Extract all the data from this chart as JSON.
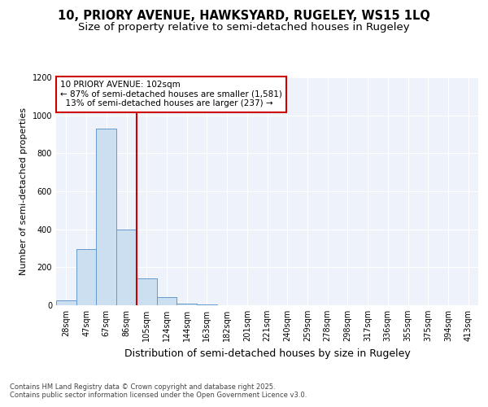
{
  "title_line1": "10, PRIORY AVENUE, HAWKSYARD, RUGELEY, WS15 1LQ",
  "title_line2": "Size of property relative to semi-detached houses in Rugeley",
  "xlabel": "Distribution of semi-detached houses by size in Rugeley",
  "ylabel": "Number of semi-detached properties",
  "footnote": "Contains HM Land Registry data © Crown copyright and database right 2025.\nContains public sector information licensed under the Open Government Licence v3.0.",
  "bin_labels": [
    "28sqm",
    "47sqm",
    "67sqm",
    "86sqm",
    "105sqm",
    "124sqm",
    "144sqm",
    "163sqm",
    "182sqm",
    "201sqm",
    "221sqm",
    "240sqm",
    "259sqm",
    "278sqm",
    "298sqm",
    "317sqm",
    "336sqm",
    "355sqm",
    "375sqm",
    "394sqm",
    "413sqm"
  ],
  "bar_values": [
    27,
    295,
    930,
    400,
    140,
    42,
    10,
    4,
    0,
    0,
    0,
    0,
    0,
    0,
    0,
    0,
    0,
    0,
    0,
    0,
    0
  ],
  "bar_color": "#ccdff0",
  "bar_edgecolor": "#6699cc",
  "property_line_x": 3.5,
  "property_label": "10 PRIORY AVENUE: 102sqm",
  "pct_smaller": 87,
  "pct_smaller_count": 1581,
  "pct_larger": 13,
  "pct_larger_count": 237,
  "line_color": "#cc0000",
  "box_edgecolor": "#cc0000",
  "ylim": [
    0,
    1200
  ],
  "yticks": [
    0,
    200,
    400,
    600,
    800,
    1000,
    1200
  ],
  "plot_bg_color": "#eef3fb",
  "title_fontsize": 10.5,
  "subtitle_fontsize": 9.5,
  "ylabel_fontsize": 8,
  "xlabel_fontsize": 9,
  "tick_fontsize": 7,
  "annot_fontsize": 7.5,
  "footnote_fontsize": 6
}
